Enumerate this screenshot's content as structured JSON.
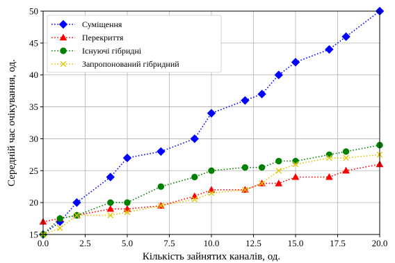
{
  "chart_data": {
    "type": "line",
    "title": "",
    "xlabel": "Кількість зайнятих каналів, од.",
    "ylabel": "Середній час очікування, од.",
    "xlim": [
      0,
      20
    ],
    "ylim": [
      15,
      50
    ],
    "xticks": [
      "0.0",
      "2.5",
      "5.0",
      "7.5",
      "10.0",
      "12.5",
      "15.0",
      "17.5",
      "20.0"
    ],
    "xtick_values": [
      0,
      2.5,
      5,
      7.5,
      10,
      12.5,
      15,
      17.5,
      20
    ],
    "yticks": [
      "15",
      "20",
      "25",
      "30",
      "35",
      "40",
      "45",
      "50"
    ],
    "ytick_values": [
      15,
      20,
      25,
      30,
      35,
      40,
      45,
      50
    ],
    "grid": true,
    "legend_position": "top-left",
    "series": [
      {
        "name": "Суміщення",
        "color": "#0000ff",
        "marker": "diamond",
        "points": [
          [
            0,
            15
          ],
          [
            1,
            17
          ],
          [
            2,
            20
          ],
          [
            4,
            24
          ],
          [
            5,
            27
          ],
          [
            7,
            28
          ],
          [
            9,
            30
          ],
          [
            10,
            34
          ],
          [
            12,
            36
          ],
          [
            13,
            37
          ],
          [
            14,
            40
          ],
          [
            15,
            42
          ],
          [
            17,
            44
          ],
          [
            18,
            46
          ],
          [
            20,
            50
          ]
        ]
      },
      {
        "name": "Перекриття",
        "color": "#ff0000",
        "marker": "triangle",
        "points": [
          [
            0,
            17
          ],
          [
            1,
            17.5
          ],
          [
            2,
            18
          ],
          [
            4,
            19
          ],
          [
            5,
            19
          ],
          [
            7,
            19.5
          ],
          [
            9,
            21
          ],
          [
            10,
            22
          ],
          [
            12,
            22
          ],
          [
            13,
            23
          ],
          [
            14,
            23
          ],
          [
            15,
            24
          ],
          [
            17,
            24
          ],
          [
            18,
            25
          ],
          [
            20,
            26
          ]
        ]
      },
      {
        "name": "Існуючі гібридні",
        "color": "#008000",
        "marker": "circle",
        "points": [
          [
            0,
            15
          ],
          [
            1,
            17.5
          ],
          [
            2,
            18
          ],
          [
            4,
            20
          ],
          [
            5,
            20
          ],
          [
            7,
            22.5
          ],
          [
            9,
            24
          ],
          [
            10,
            25
          ],
          [
            12,
            25.5
          ],
          [
            13,
            25.5
          ],
          [
            14,
            26.5
          ],
          [
            15,
            26.5
          ],
          [
            17,
            27.5
          ],
          [
            18,
            28
          ],
          [
            20,
            29
          ]
        ]
      },
      {
        "name": "Запропонований гібридний",
        "color": "#e0c800",
        "marker": "x",
        "points": [
          [
            0,
            15
          ],
          [
            1,
            16
          ],
          [
            2,
            18
          ],
          [
            4,
            18
          ],
          [
            5,
            18.5
          ],
          [
            7,
            19.5
          ],
          [
            9,
            20.5
          ],
          [
            10,
            21.5
          ],
          [
            12,
            22
          ],
          [
            13,
            23
          ],
          [
            14,
            25
          ],
          [
            15,
            26
          ],
          [
            17,
            27
          ],
          [
            18,
            27
          ],
          [
            20,
            27.5
          ]
        ]
      }
    ]
  }
}
